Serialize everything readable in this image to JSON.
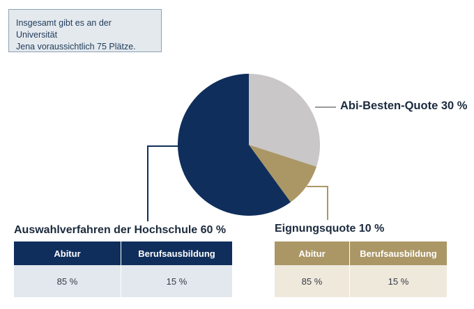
{
  "note": {
    "line1": "Insgesamt gibt es an der Universität",
    "line2": "Jena voraussichtlich 75 Plätze."
  },
  "chart_data": {
    "type": "pie",
    "slices": [
      {
        "label": "Abi-Besten-Quote 30 %",
        "value": 30,
        "color": "#c9c7c8"
      },
      {
        "label": "Eignungsquote 10 %",
        "value": 10,
        "color": "#ab9766"
      },
      {
        "label": "Auswahlverfahren der Hochschule 60 %",
        "value": 60,
        "color": "#0f2e5b"
      }
    ],
    "leader_color_abi": "#9a9a9a",
    "leader_color_eig": "#ab9766",
    "leader_color_ausw": "#0f2e5b"
  },
  "tables": {
    "left": {
      "headers": [
        "Abitur",
        "Berufsausbildung"
      ],
      "values": [
        "85 %",
        "15 %"
      ]
    },
    "right": {
      "headers": [
        "Abitur",
        "Berufsausbildung"
      ],
      "values": [
        "85 %",
        "15 %"
      ]
    }
  }
}
